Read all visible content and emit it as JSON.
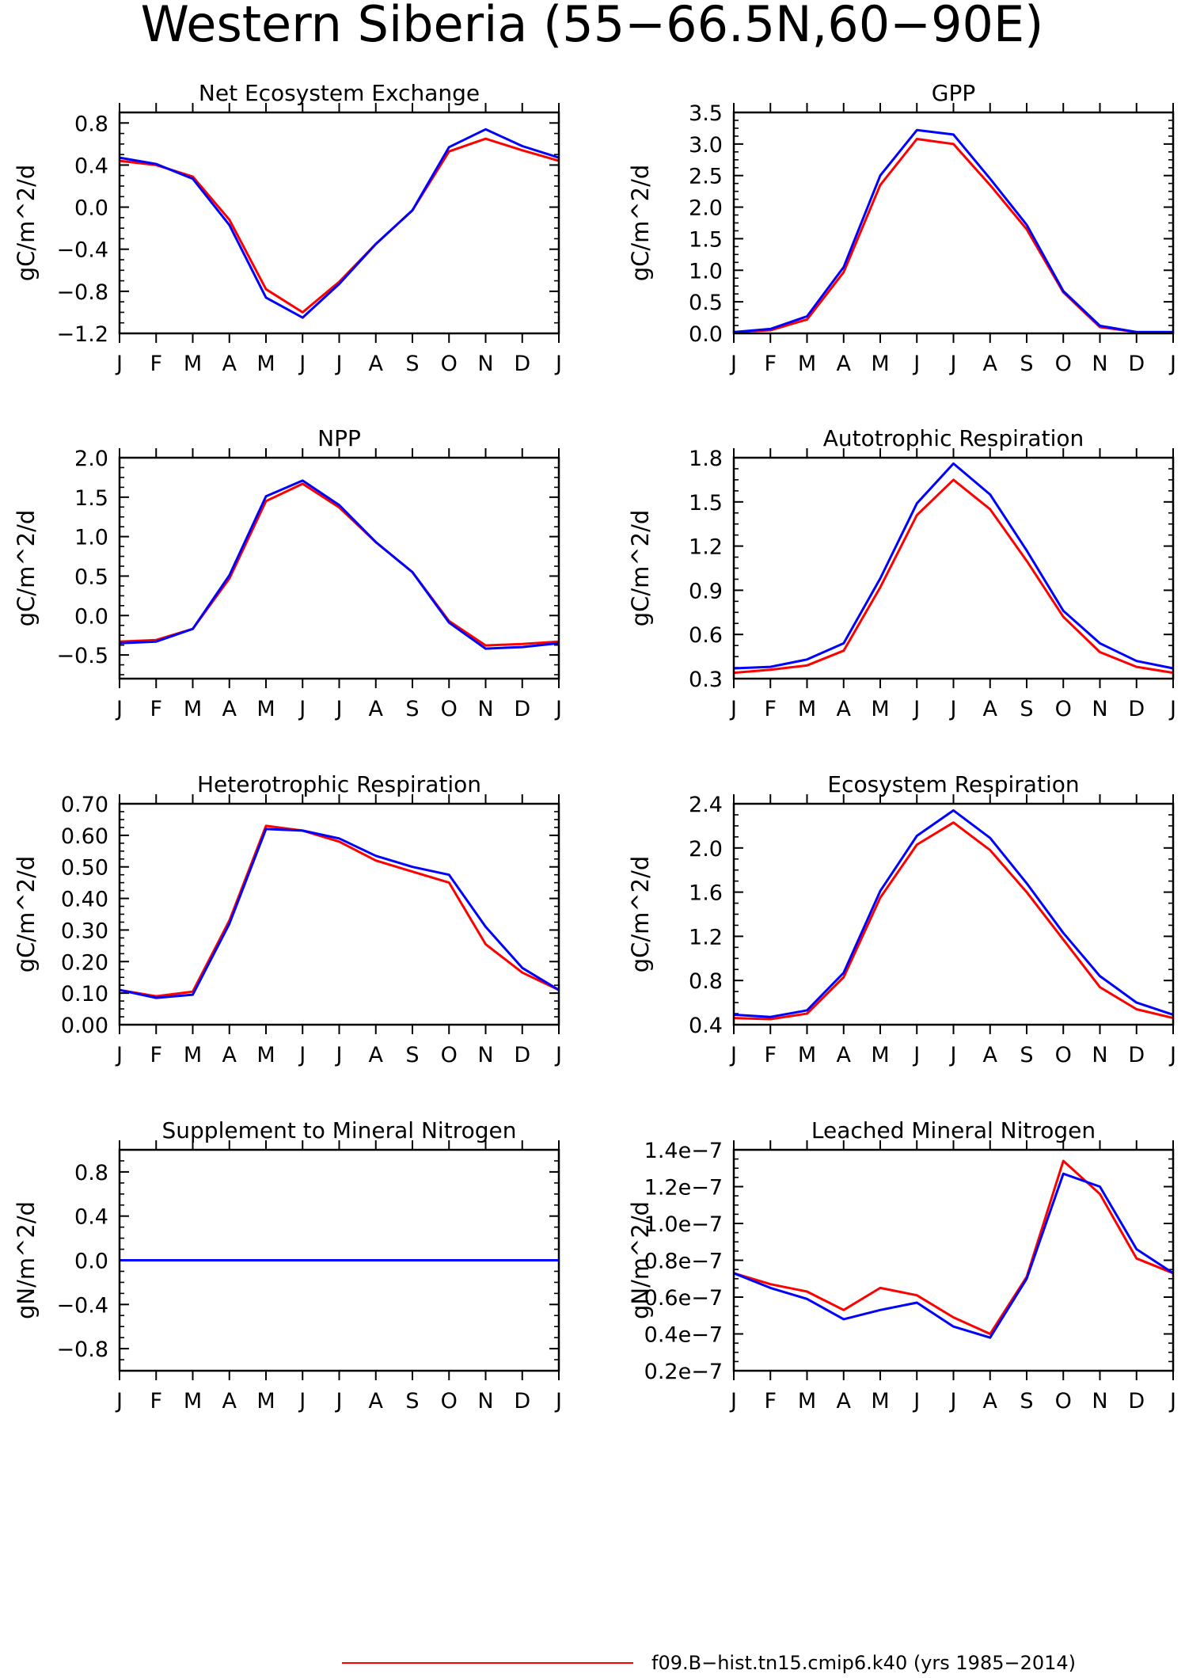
{
  "figure": {
    "title": "Western Siberia (55−66.5N,60−90E)",
    "legend": [
      {
        "label": "f09.B−hist.tn15.cmip6.k40 (yrs 1985−2014)",
        "color": "#ff0000"
      }
    ]
  },
  "colors": {
    "series_red": "#ff0000",
    "series_blue": "#0000ff",
    "axes": "#000000"
  },
  "chart_data": [
    {
      "type": "line",
      "title": "Net Ecosystem Exchange",
      "ylabel": "gC/m^2/d",
      "xlabel": "",
      "categories": [
        "J",
        "F",
        "M",
        "A",
        "M",
        "J",
        "J",
        "A",
        "S",
        "O",
        "N",
        "D",
        "J"
      ],
      "ylim": [
        -1.2,
        0.9
      ],
      "yticks": [
        -1.2,
        -0.8,
        -0.4,
        0.0,
        0.4,
        0.8
      ],
      "ytick_labels": [
        "−1.2",
        "−0.8",
        "−0.4",
        "0.0",
        "0.4",
        "0.8"
      ],
      "series": [
        {
          "color": "#ff0000",
          "values": [
            0.44,
            0.4,
            0.29,
            -0.12,
            -0.78,
            -1.0,
            -0.71,
            -0.35,
            -0.03,
            0.53,
            0.65,
            0.54,
            0.44
          ]
        },
        {
          "color": "#0000ff",
          "values": [
            0.47,
            0.41,
            0.27,
            -0.17,
            -0.86,
            -1.05,
            -0.73,
            -0.35,
            -0.03,
            0.57,
            0.74,
            0.58,
            0.47
          ]
        }
      ]
    },
    {
      "type": "line",
      "title": "GPP",
      "ylabel": "gC/m^2/d",
      "xlabel": "",
      "categories": [
        "J",
        "F",
        "M",
        "A",
        "M",
        "J",
        "J",
        "A",
        "S",
        "O",
        "N",
        "D",
        "J"
      ],
      "ylim": [
        0.0,
        3.5
      ],
      "yticks": [
        0.0,
        0.5,
        1.0,
        1.5,
        2.0,
        2.5,
        3.0,
        3.5
      ],
      "ytick_labels": [
        "0.0",
        "0.5",
        "1.0",
        "1.5",
        "2.0",
        "2.5",
        "3.0",
        "3.5"
      ],
      "series": [
        {
          "color": "#ff0000",
          "values": [
            0.02,
            0.05,
            0.22,
            0.97,
            2.35,
            3.08,
            3.0,
            2.35,
            1.65,
            0.65,
            0.1,
            0.02,
            0.02
          ]
        },
        {
          "color": "#0000ff",
          "values": [
            0.02,
            0.07,
            0.27,
            1.05,
            2.5,
            3.22,
            3.15,
            2.45,
            1.72,
            0.67,
            0.12,
            0.02,
            0.02
          ]
        }
      ]
    },
    {
      "type": "line",
      "title": "NPP",
      "ylabel": "gC/m^2/d",
      "xlabel": "",
      "categories": [
        "J",
        "F",
        "M",
        "A",
        "M",
        "J",
        "J",
        "A",
        "S",
        "O",
        "N",
        "D",
        "J"
      ],
      "ylim": [
        -0.8,
        2.0
      ],
      "yticks": [
        -0.5,
        0.0,
        0.5,
        1.0,
        1.5,
        2.0
      ],
      "ytick_labels": [
        "−0.5",
        "0.0",
        "0.5",
        "1.0",
        "1.5",
        "2.0"
      ],
      "series": [
        {
          "color": "#ff0000",
          "values": [
            -0.33,
            -0.31,
            -0.17,
            0.47,
            1.45,
            1.67,
            1.37,
            0.93,
            0.55,
            -0.07,
            -0.38,
            -0.36,
            -0.33
          ]
        },
        {
          "color": "#0000ff",
          "values": [
            -0.35,
            -0.33,
            -0.17,
            0.51,
            1.51,
            1.71,
            1.4,
            0.93,
            0.55,
            -0.09,
            -0.42,
            -0.4,
            -0.35
          ]
        }
      ]
    },
    {
      "type": "line",
      "title": "Autotrophic Respiration",
      "ylabel": "gC/m^2/d",
      "xlabel": "",
      "categories": [
        "J",
        "F",
        "M",
        "A",
        "M",
        "J",
        "J",
        "A",
        "S",
        "O",
        "N",
        "D",
        "J"
      ],
      "ylim": [
        0.3,
        1.8
      ],
      "yticks": [
        0.3,
        0.6,
        0.9,
        1.2,
        1.5,
        1.8
      ],
      "ytick_labels": [
        "0.3",
        "0.6",
        "0.9",
        "1.2",
        "1.5",
        "1.8"
      ],
      "series": [
        {
          "color": "#ff0000",
          "values": [
            0.34,
            0.36,
            0.39,
            0.49,
            0.92,
            1.41,
            1.65,
            1.45,
            1.1,
            0.72,
            0.48,
            0.38,
            0.34
          ]
        },
        {
          "color": "#0000ff",
          "values": [
            0.37,
            0.38,
            0.43,
            0.54,
            0.98,
            1.49,
            1.76,
            1.55,
            1.17,
            0.76,
            0.54,
            0.42,
            0.37
          ]
        }
      ]
    },
    {
      "type": "line",
      "title": "Heterotrophic Respiration",
      "ylabel": "gC/m^2/d",
      "xlabel": "",
      "categories": [
        "J",
        "F",
        "M",
        "A",
        "M",
        "J",
        "J",
        "A",
        "S",
        "O",
        "N",
        "D",
        "J"
      ],
      "ylim": [
        0.0,
        0.7
      ],
      "yticks": [
        0.0,
        0.1,
        0.2,
        0.3,
        0.4,
        0.5,
        0.6,
        0.7
      ],
      "ytick_labels": [
        "0.00",
        "0.10",
        "0.20",
        "0.30",
        "0.40",
        "0.50",
        "0.60",
        "0.70"
      ],
      "series": [
        {
          "color": "#ff0000",
          "values": [
            0.11,
            0.09,
            0.105,
            0.33,
            0.63,
            0.615,
            0.58,
            0.52,
            0.485,
            0.45,
            0.255,
            0.165,
            0.11
          ]
        },
        {
          "color": "#0000ff",
          "values": [
            0.11,
            0.085,
            0.095,
            0.32,
            0.62,
            0.615,
            0.59,
            0.535,
            0.5,
            0.475,
            0.31,
            0.18,
            0.11
          ]
        }
      ]
    },
    {
      "type": "line",
      "title": "Ecosystem Respiration",
      "ylabel": "gC/m^2/d",
      "xlabel": "",
      "categories": [
        "J",
        "F",
        "M",
        "A",
        "M",
        "J",
        "J",
        "A",
        "S",
        "O",
        "N",
        "D",
        "J"
      ],
      "ylim": [
        0.4,
        2.4
      ],
      "yticks": [
        0.4,
        0.8,
        1.2,
        1.6,
        2.0,
        2.4
      ],
      "ytick_labels": [
        "0.4",
        "0.8",
        "1.2",
        "1.6",
        "2.0",
        "2.4"
      ],
      "series": [
        {
          "color": "#ff0000",
          "values": [
            0.46,
            0.45,
            0.5,
            0.83,
            1.55,
            2.03,
            2.23,
            1.98,
            1.6,
            1.17,
            0.74,
            0.54,
            0.46
          ]
        },
        {
          "color": "#0000ff",
          "values": [
            0.49,
            0.47,
            0.53,
            0.87,
            1.61,
            2.11,
            2.34,
            2.09,
            1.68,
            1.23,
            0.84,
            0.6,
            0.49
          ]
        }
      ]
    },
    {
      "type": "line",
      "title": "Supplement to Mineral Nitrogen",
      "ylabel": "gN/m^2/d",
      "xlabel": "",
      "categories": [
        "J",
        "F",
        "M",
        "A",
        "M",
        "J",
        "J",
        "A",
        "S",
        "O",
        "N",
        "D",
        "J"
      ],
      "ylim": [
        -1.0,
        1.0
      ],
      "yticks": [
        -0.8,
        -0.4,
        0.0,
        0.4,
        0.8
      ],
      "ytick_labels": [
        "−0.8",
        "−0.4",
        "0.0",
        "0.4",
        "0.8"
      ],
      "series": [
        {
          "color": "#ff0000",
          "values": [
            0,
            0,
            0,
            0,
            0,
            0,
            0,
            0,
            0,
            0,
            0,
            0,
            0
          ]
        },
        {
          "color": "#0000ff",
          "values": [
            0,
            0,
            0,
            0,
            0,
            0,
            0,
            0,
            0,
            0,
            0,
            0,
            0
          ]
        }
      ]
    },
    {
      "type": "line",
      "title": "Leached Mineral Nitrogen",
      "ylabel": "gN/m^2/d",
      "xlabel": "",
      "categories": [
        "J",
        "F",
        "M",
        "A",
        "M",
        "J",
        "J",
        "A",
        "S",
        "O",
        "N",
        "D",
        "J"
      ],
      "ylim": [
        2e-08,
        1.4e-07
      ],
      "yticks": [
        2e-08,
        4e-08,
        6e-08,
        8e-08,
        1e-07,
        1.2e-07,
        1.4e-07
      ],
      "ytick_labels": [
        "0.2e−7",
        "0.4e−7",
        "0.6e−7",
        "0.8e−7",
        "1.0e−7",
        "1.2e−7",
        "1.4e−7"
      ],
      "series": [
        {
          "color": "#ff0000",
          "values": [
            7.3e-08,
            6.7e-08,
            6.3e-08,
            5.3e-08,
            6.5e-08,
            6.1e-08,
            4.9e-08,
            4e-08,
            7.1e-08,
            1.34e-07,
            1.16e-07,
            8.1e-08,
            7.3e-08
          ]
        },
        {
          "color": "#0000ff",
          "values": [
            7.3e-08,
            6.5e-08,
            5.9e-08,
            4.8e-08,
            5.3e-08,
            5.7e-08,
            4.4e-08,
            3.8e-08,
            7e-08,
            1.27e-07,
            1.2e-07,
            8.6e-08,
            7.3e-08
          ]
        }
      ]
    }
  ]
}
